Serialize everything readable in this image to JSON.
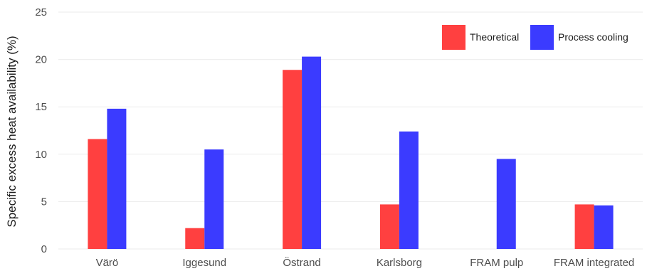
{
  "chart_data": {
    "type": "bar",
    "title": "",
    "xlabel": "",
    "ylabel": "Specific excess heat availability (%)",
    "categories": [
      "Värö",
      "Iggesund",
      "Östrand",
      "Karlsborg",
      "FRAM pulp",
      "FRAM integrated"
    ],
    "series": [
      {
        "name": "Theoretical",
        "color": "#ff4040",
        "values": [
          11.6,
          2.2,
          18.9,
          4.7,
          null,
          4.7
        ]
      },
      {
        "name": "Process cooling",
        "color": "#3b3bff",
        "values": [
          14.8,
          10.5,
          20.3,
          12.4,
          9.5,
          4.6
        ]
      }
    ],
    "ylim": [
      0,
      25
    ],
    "yticks": [
      0,
      5,
      10,
      15,
      20,
      25
    ],
    "grid": true,
    "legend_position": "top-right"
  }
}
